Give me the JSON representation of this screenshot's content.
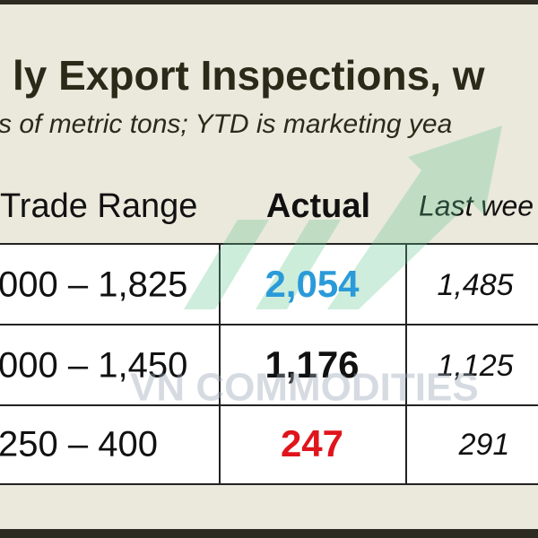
{
  "header": {
    "title": "ly Export Inspections, w",
    "subtitle": "s of metric tons; YTD is marketing yea"
  },
  "table": {
    "columns": [
      "Trade Range",
      "Actual",
      "Last wee"
    ],
    "rows": [
      [
        "000 – 1,825",
        "2,054",
        "1,485"
      ],
      [
        "000 – 1,450",
        "1,176",
        "1,125"
      ],
      [
        "250 – 400",
        "247",
        "291"
      ]
    ]
  },
  "watermark": "VN COMMODITIES"
}
